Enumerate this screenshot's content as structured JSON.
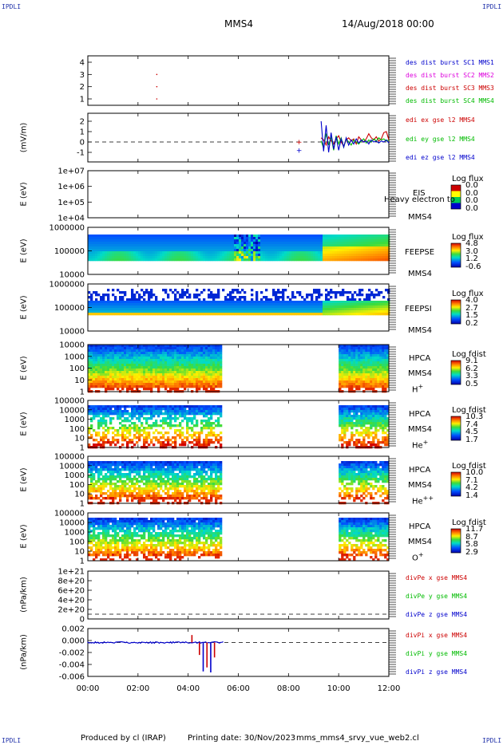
{
  "header": {
    "corner_left": "IPDLI",
    "corner_right": "IPDLI",
    "spacecraft": "MMS4",
    "date": "14/Aug/2018 00:00",
    "bottom_left": "IPDLI",
    "bottom_right": "IPDLI"
  },
  "footer": {
    "produced_by": "Produced by cl (IRAP)",
    "printing_date": "Printing date: 30/Nov/2023",
    "script": "mms_mms4_srvy_vue_web2.cl"
  },
  "chart_data": {
    "type": "multi-panel time series and spectrograms",
    "x": {
      "ticks": [
        "00:00",
        "02:00",
        "04:00",
        "06:00",
        "08:00",
        "10:00",
        "12:00"
      ],
      "range_hours": [
        0,
        12
      ]
    },
    "panels": [
      {
        "id": "des_burst",
        "type": "scatter",
        "ylabel": "",
        "ylim": [
          0.5,
          4.5
        ],
        "yticks": [
          "1",
          "2",
          "3",
          "4"
        ],
        "legend": [
          {
            "label": "des dist burst SC1 MMS1",
            "color": "#0000cc"
          },
          {
            "label": "des dist burst SC2 MMS2",
            "color": "#dd00dd"
          },
          {
            "label": "des dist burst SC3 MMS3",
            "color": "#cc0000"
          },
          {
            "label": "des dist burst SC4 MMS4",
            "color": "#00bb00"
          }
        ],
        "points": [
          {
            "x": 2.75,
            "y": 3.0,
            "color": "#cc0000"
          },
          {
            "x": 2.75,
            "y": 2.0,
            "color": "#cc0000"
          },
          {
            "x": 2.75,
            "y": 1.0,
            "color": "#cc0000"
          }
        ]
      },
      {
        "id": "edi_e",
        "type": "line",
        "ylabel": "(mV/m)",
        "ylim": [
          -1.5,
          3.0
        ],
        "yticks": [
          "-1",
          "0",
          "1",
          "2"
        ],
        "zero_line": true,
        "legend": [
          {
            "label": "edi ex gse l2 MMS4",
            "color": "#cc0000"
          },
          {
            "label": "edi ey gse l2 MMS4",
            "color": "#00bb00"
          },
          {
            "label": "edi ez gse l2 MMS4",
            "color": "#0000cc"
          }
        ],
        "x_start_hours": 9.3,
        "x_end_hours": 12.0,
        "series": [
          {
            "name": "edi ex gse l2 MMS4",
            "color": "#cc0000",
            "values": [
              0.4,
              0.2,
              -0.3,
              0.5,
              0.1,
              -0.2,
              0.3,
              0.6,
              0.0,
              -0.4,
              0.2,
              0.4,
              0.1,
              0.3,
              -0.2,
              0.5,
              0.2,
              0.0,
              0.3,
              0.8,
              0.4,
              0.2,
              0.5,
              0.1,
              0.3,
              0.9,
              1.0,
              0.2
            ]
          },
          {
            "name": "edi ey gse l2 MMS4",
            "color": "#00bb00",
            "values": [
              0.1,
              -0.6,
              0.8,
              -0.3,
              0.5,
              -0.8,
              0.6,
              -0.2,
              0.4,
              -0.5,
              0.3,
              0.0,
              -0.3,
              0.2,
              0.0,
              -0.2,
              0.1,
              0.3,
              -0.1,
              0.2,
              0.0,
              0.3,
              0.1,
              0.4,
              0.2,
              0.3,
              0.1,
              0.2
            ]
          },
          {
            "name": "edi ez gse l2 MMS4",
            "color": "#0000cc",
            "values": [
              2.0,
              -0.9,
              1.6,
              -1.0,
              0.9,
              -0.7,
              0.5,
              -0.8,
              0.3,
              -0.5,
              0.4,
              -0.3,
              0.2,
              -0.2,
              0.3,
              -0.1,
              0.2,
              0.0,
              0.1,
              -0.2,
              0.2,
              0.0,
              0.1,
              -0.1,
              0.1,
              0.0,
              0.2,
              -0.1
            ]
          }
        ],
        "isolated_points": [
          {
            "x": 8.4,
            "y": 0.0,
            "color": "#cc0000"
          },
          {
            "x": 8.4,
            "y": -0.8,
            "color": "#0000cc"
          }
        ]
      },
      {
        "id": "eis",
        "type": "heatmap",
        "ylabel": "E (eV)",
        "yticks": [
          "1e+04",
          "1e+05",
          "1e+06",
          "1e+07"
        ],
        "instrument": [
          "EIS",
          "MMS4"
        ],
        "overlay_text": "Heavy electron to",
        "cb_title": "Log flux",
        "cb_values": [
          "0.0",
          "0.0",
          "0.0",
          "0.0"
        ],
        "cb_colors": [
          "#cc0000",
          "#ffff00",
          "#00cc55",
          "#0000cc"
        ]
      },
      {
        "id": "feepse",
        "type": "heatmap",
        "ylabel": "E (eV)",
        "yticks": [
          "10000",
          "100000",
          "1000000"
        ],
        "instrument": [
          "FEEPSE",
          "MMS4"
        ],
        "cb_title": "Log flux",
        "cb_values": [
          "4.8",
          "3.0",
          "1.2",
          "-0.6"
        ],
        "cb_colors": [
          "#cc0000",
          "#ffee00",
          "#00cc66",
          "#0000cc"
        ]
      },
      {
        "id": "feepsi",
        "type": "heatmap",
        "ylabel": "E (eV)",
        "yticks": [
          "10000",
          "100000",
          "1000000"
        ],
        "instrument": [
          "FEEPSI",
          "MMS4"
        ],
        "cb_title": "Log flux",
        "cb_values": [
          "4.0",
          "2.7",
          "1.5",
          "0.2"
        ],
        "cb_colors": [
          "#cc0000",
          "#ffee00",
          "#00cc66",
          "#0000cc"
        ]
      },
      {
        "id": "hpca_h",
        "type": "heatmap",
        "ylabel": "E (eV)",
        "yticks": [
          "1",
          "10",
          "100",
          "1000",
          "10000"
        ],
        "instrument": [
          "HPCA",
          "MMS4"
        ],
        "species": "H",
        "species_charge": "+",
        "cb_title": "Log fdist",
        "cb_values": [
          "9.1",
          "6.2",
          "3.3",
          "0.5"
        ],
        "cb_colors": [
          "#cc0000",
          "#ffee00",
          "#00cc66",
          "#0000cc"
        ]
      },
      {
        "id": "hpca_he",
        "type": "heatmap",
        "ylabel": "E (eV)",
        "yticks": [
          "1",
          "10",
          "100",
          "1000",
          "10000",
          "100000"
        ],
        "instrument": [
          "HPCA",
          "MMS4"
        ],
        "species": "He",
        "species_charge": "+",
        "cb_title": "Log fdist",
        "cb_values": [
          "10.3",
          "7.4",
          "4.5",
          "1.7"
        ],
        "cb_colors": [
          "#cc0000",
          "#ffee00",
          "#00cc66",
          "#0000cc"
        ]
      },
      {
        "id": "hpca_he2",
        "type": "heatmap",
        "ylabel": "E (eV)",
        "yticks": [
          "1",
          "10",
          "100",
          "1000",
          "10000",
          "100000"
        ],
        "instrument": [
          "HPCA",
          "MMS4"
        ],
        "species": "He",
        "species_charge": "++",
        "cb_title": "Log fdist",
        "cb_values": [
          "10.0",
          "7.1",
          "4.2",
          "1.4"
        ],
        "cb_colors": [
          "#cc0000",
          "#ffee00",
          "#00cc66",
          "#0000cc"
        ]
      },
      {
        "id": "hpca_o",
        "type": "heatmap",
        "ylabel": "E (eV)",
        "yticks": [
          "1",
          "10",
          "100",
          "1000",
          "10000",
          "100000"
        ],
        "instrument": [
          "HPCA",
          "MMS4"
        ],
        "species": "O",
        "species_charge": "+",
        "cb_title": "Log fdist",
        "cb_values": [
          "11.7",
          "8.7",
          "5.8",
          "2.9"
        ],
        "cb_colors": [
          "#cc0000",
          "#ffee00",
          "#00cc66",
          "#0000cc"
        ]
      },
      {
        "id": "divpe",
        "type": "line",
        "ylabel": "(nPa/km)",
        "yticks": [
          "0",
          "2e+20",
          "4e+20",
          "6e+20",
          "8e+20",
          "1e+21"
        ],
        "zero_line": true,
        "legend": [
          {
            "label": "divPe x gse MMS4",
            "color": "#cc0000"
          },
          {
            "label": "divPe y gse MMS4",
            "color": "#00bb00"
          },
          {
            "label": "divPe z gse MMS4",
            "color": "#0000cc"
          }
        ]
      },
      {
        "id": "divpi",
        "type": "line",
        "ylabel": "(nPa/km)",
        "yticks": [
          "-0.006",
          "-0.004",
          "-0.002",
          "0.000",
          "0.002"
        ],
        "ylim": [
          -0.0068,
          0.0028
        ],
        "zero_line": true,
        "legend": [
          {
            "label": "divPi x gse MMS4",
            "color": "#cc0000"
          },
          {
            "label": "divPi y gse MMS4",
            "color": "#00bb00"
          },
          {
            "label": "divPi z gse MMS4",
            "color": "#0000cc"
          }
        ],
        "spikes": [
          {
            "x": 4.15,
            "y": 0.0015,
            "color": "#cc0000"
          },
          {
            "x": 4.45,
            "y": -0.0025,
            "color": "#cc0000"
          },
          {
            "x": 4.6,
            "y": -0.0058,
            "color": "#0000cc"
          },
          {
            "x": 4.75,
            "y": -0.005,
            "color": "#cc0000"
          },
          {
            "x": 4.9,
            "y": -0.006,
            "color": "#0000cc"
          },
          {
            "x": 5.05,
            "y": -0.003,
            "color": "#cc0000"
          }
        ]
      }
    ]
  }
}
